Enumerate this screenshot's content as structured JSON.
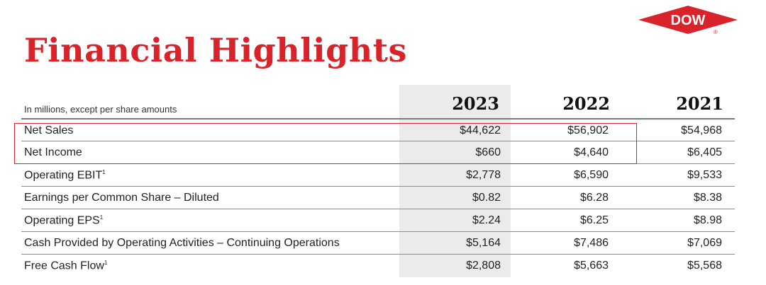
{
  "title": "Financial Highlights",
  "brand": {
    "logo_text": "DOW",
    "registered_mark": "®",
    "color": "#d8232a"
  },
  "table": {
    "note": "In millions, except per share amounts",
    "years": [
      "2023",
      "2022",
      "2021"
    ],
    "highlight_column": "2023",
    "rows": [
      {
        "label": "Net Sales",
        "footnote": "",
        "values": [
          "$44,622",
          "$56,902",
          "$54,968"
        ]
      },
      {
        "label": "Net Income",
        "footnote": "",
        "values": [
          "$660",
          "$4,640",
          "$6,405"
        ]
      },
      {
        "label": "Operating EBIT",
        "footnote": "1",
        "values": [
          "$2,778",
          "$6,590",
          "$9,533"
        ]
      },
      {
        "label": "Earnings per Common Share – Diluted",
        "footnote": "",
        "values": [
          "$0.82",
          "$6.28",
          "$8.38"
        ]
      },
      {
        "label": "Operating EPS",
        "footnote": "1",
        "values": [
          "$2.24",
          "$6.25",
          "$8.98"
        ]
      },
      {
        "label": "Cash Provided by Operating Activities – Continuing Operations",
        "footnote": "",
        "values": [
          "$5,164",
          "$7,486",
          "$7,069"
        ]
      },
      {
        "label": "Free Cash Flow",
        "footnote": "1",
        "values": [
          "$2,808",
          "$5,663",
          "$5,568"
        ]
      }
    ]
  }
}
